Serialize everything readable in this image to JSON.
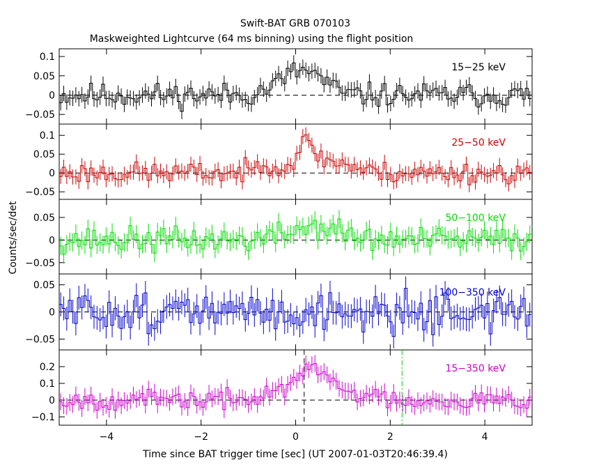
{
  "chart_data": {
    "type": "line",
    "title": "Swift-BAT GRB 070103",
    "subtitle": "Maskweighted Lightcurve (64 ms binning) using the flight position",
    "xlabel": "Time since BAT trigger time [sec] (UT 2007-01-03T20:46:39.4)",
    "ylabel": "Counts/sec/det",
    "xlim": [
      -5,
      5
    ],
    "x_ticks": [
      -4,
      -2,
      0,
      2,
      4
    ],
    "x_tick_labels": [
      "−4",
      "−2",
      "0",
      "2",
      "4"
    ],
    "bin_width": 0.064,
    "markers": {
      "t_start": 0.18,
      "t_end": 2.25
    },
    "panels": [
      {
        "name": "15−25 keV",
        "color": "#000000",
        "ylim": [
          -0.075,
          0.12
        ],
        "y_ticks": [
          -0.05,
          0,
          0.05,
          0.1
        ],
        "y_tick_labels": [
          "−0.05",
          "0",
          "0.05",
          "0.1"
        ],
        "err": 0.02,
        "features": [
          [
            0.3,
            0.35,
            0.05
          ],
          [
            -0.2,
            0.35,
            0.03
          ]
        ],
        "noise": 0.022,
        "seed": 11
      },
      {
        "name": "25−50 keV",
        "color": "#cc0000",
        "ylim": [
          -0.07,
          0.13
        ],
        "y_ticks": [
          -0.05,
          0,
          0.05,
          0.1
        ],
        "y_tick_labels": [
          "−0.05",
          "0",
          "0.05",
          "0.1"
        ],
        "err": 0.02,
        "features": [
          [
            0.2,
            0.2,
            0.07
          ],
          [
            -0.6,
            0.2,
            0.03
          ],
          [
            0.8,
            0.4,
            0.03
          ]
        ],
        "noise": 0.02,
        "seed": 23
      },
      {
        "name": "50−100 keV",
        "color": "#00dd00",
        "ylim": [
          -0.075,
          0.09
        ],
        "y_ticks": [
          -0.05,
          0,
          0.05
        ],
        "y_tick_labels": [
          "−0.05",
          "0",
          "0.05"
        ],
        "err": 0.02,
        "features": [
          [
            0.4,
            0.5,
            0.03
          ]
        ],
        "noise": 0.02,
        "seed": 37
      },
      {
        "name": "100−350 keV",
        "color": "#0000cc",
        "ylim": [
          -0.07,
          0.07
        ],
        "y_ticks": [
          -0.05,
          0,
          0.05
        ],
        "y_tick_labels": [
          "−0.05",
          "0",
          "0.05"
        ],
        "err": 0.022,
        "features": [],
        "noise": 0.025,
        "seed": 51
      },
      {
        "name": "15−350 keV",
        "color": "#cc00cc",
        "ylim": [
          -0.15,
          0.3
        ],
        "y_ticks": [
          -0.1,
          0,
          0.1,
          0.2
        ],
        "y_tick_labels": [
          "−0.1",
          "0",
          "0.1",
          "0.2"
        ],
        "err": 0.05,
        "features": [
          [
            0.35,
            0.3,
            0.17
          ],
          [
            -0.4,
            0.3,
            0.05
          ],
          [
            1.0,
            0.5,
            0.05
          ]
        ],
        "noise": 0.04,
        "seed": 67
      }
    ]
  }
}
